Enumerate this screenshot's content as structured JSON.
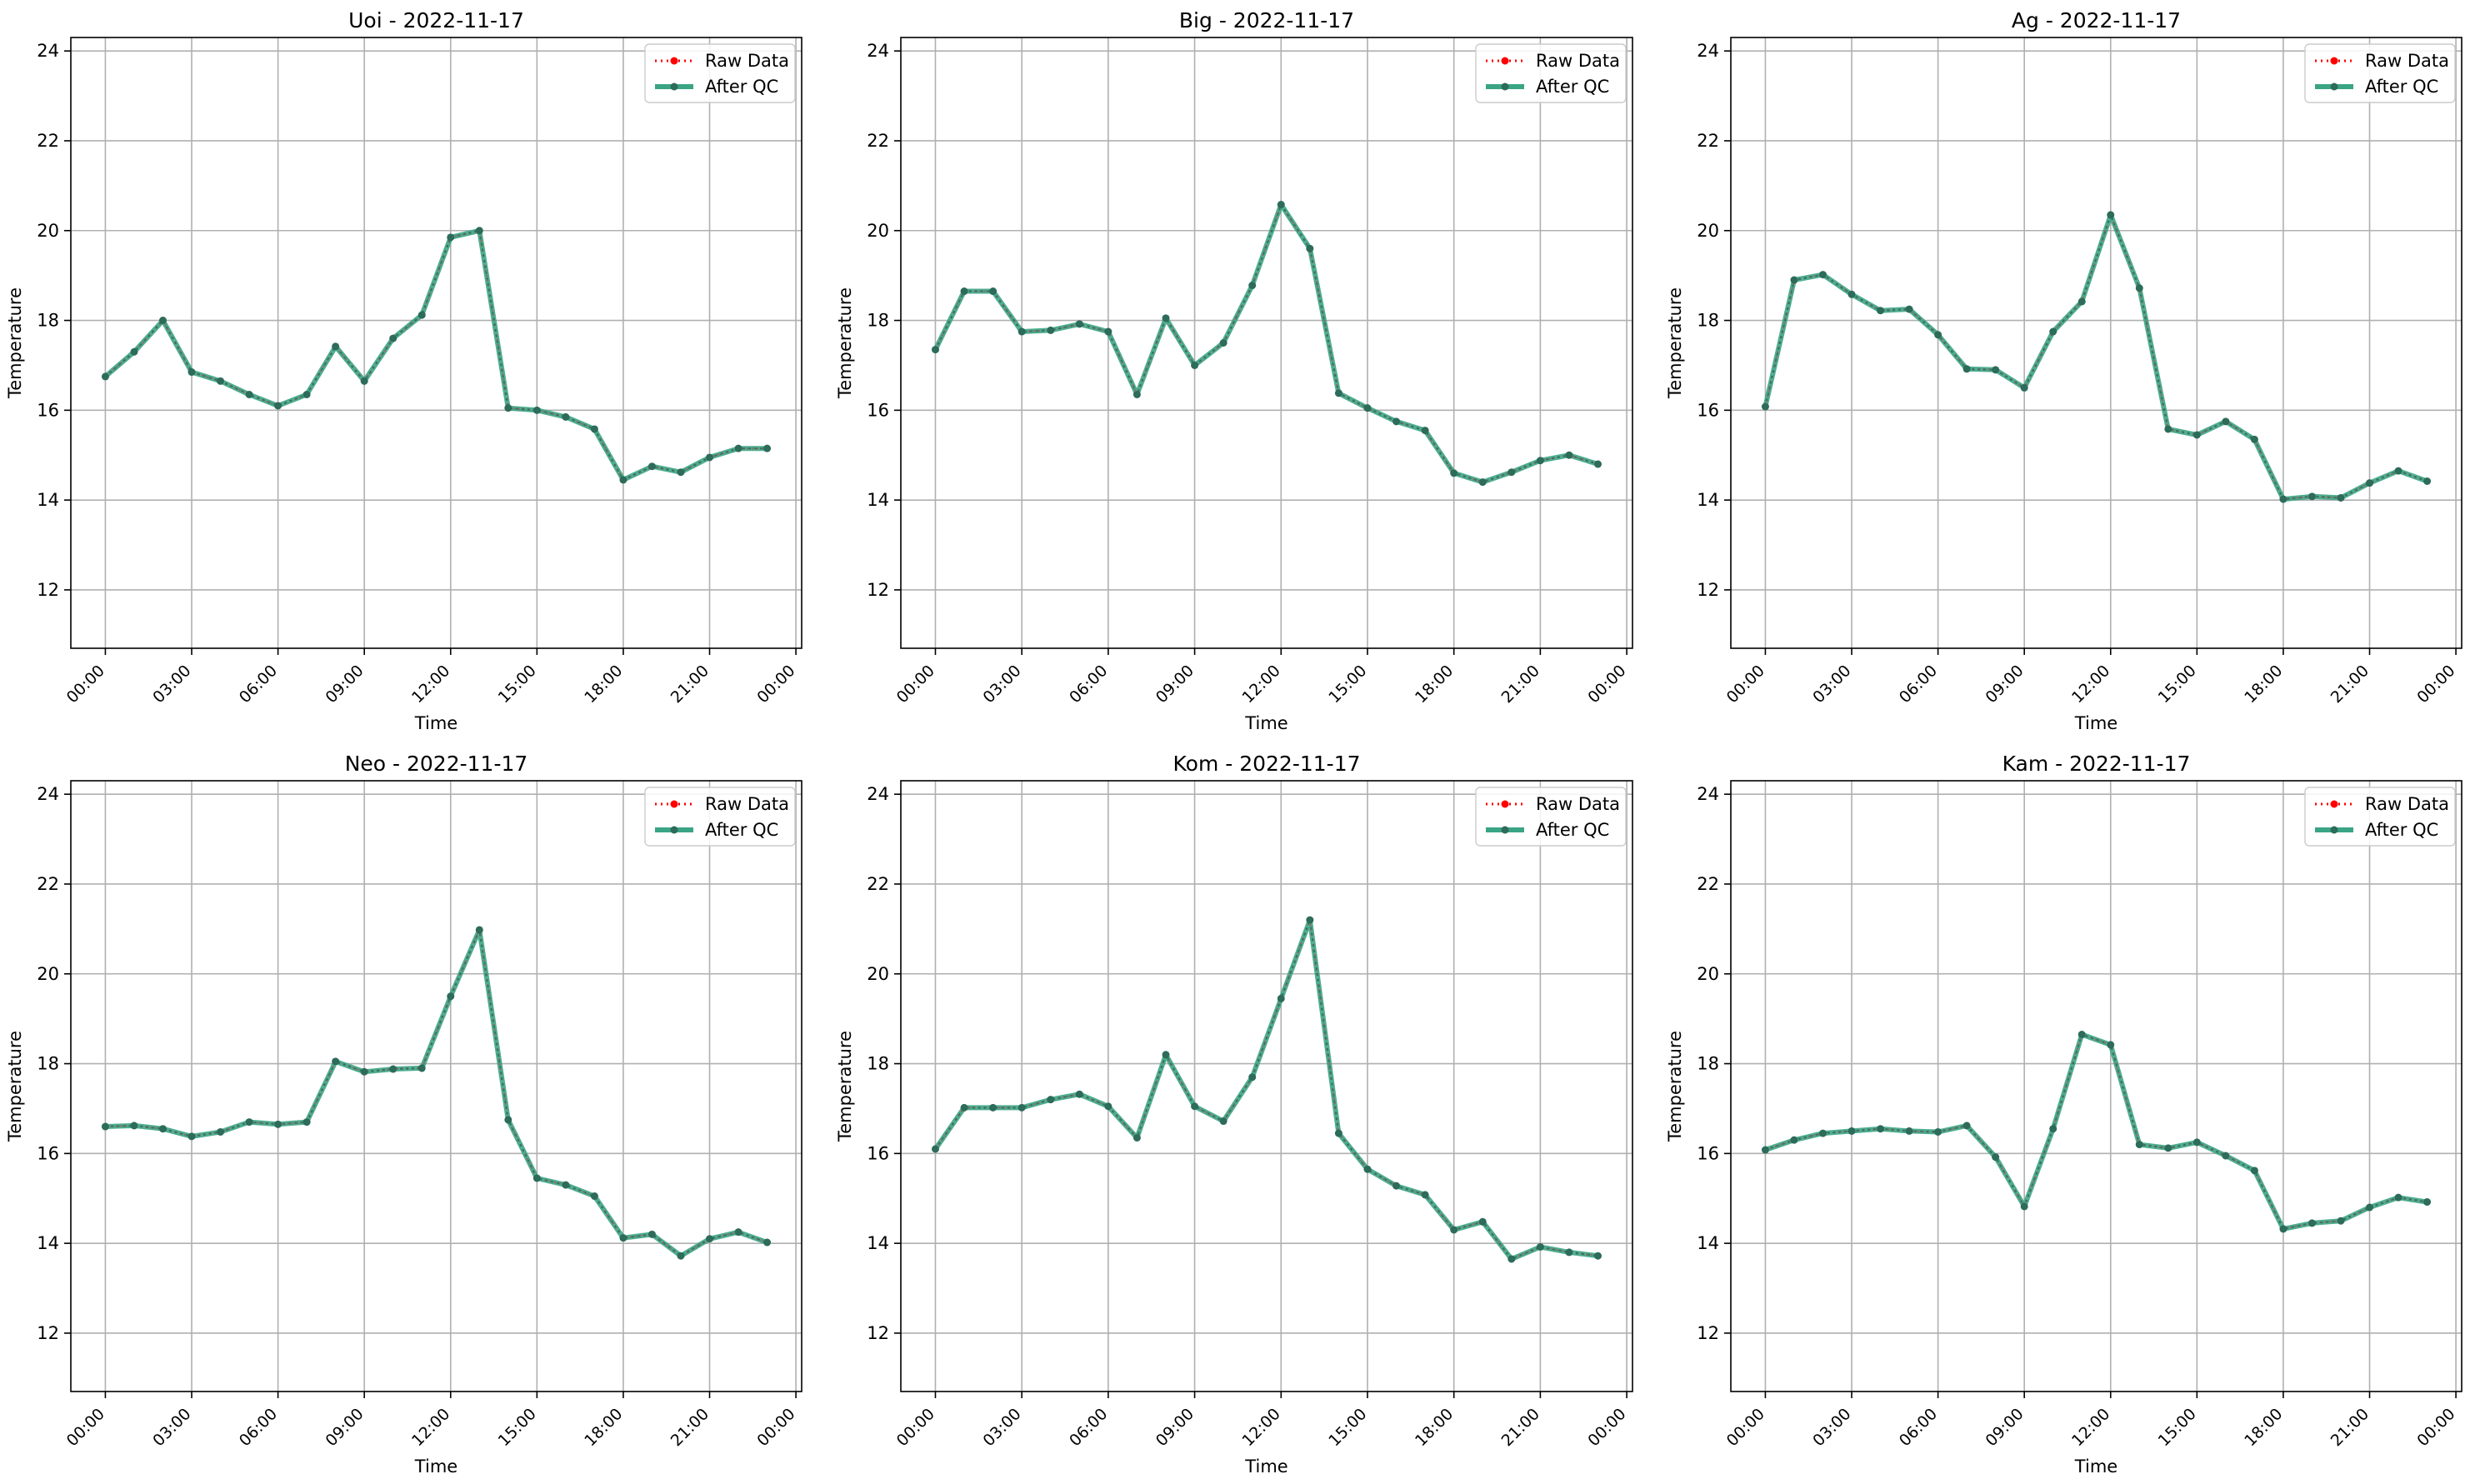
{
  "figure": {
    "colors": {
      "raw": "#ff0000",
      "qc": "#2e9e7e",
      "qc_line": "#3aa585",
      "qc_marker": "#2d6b5a",
      "grid": "#b0b0b0",
      "axis": "#000000"
    }
  },
  "chart_data": [
    {
      "type": "line",
      "title": "Uoi - 2022-11-17",
      "xlabel": "Time",
      "ylabel": "Temperature",
      "x_tick_labels": [
        "00:00",
        "03:00",
        "06:00",
        "09:00",
        "12:00",
        "15:00",
        "18:00",
        "21:00",
        "00:00"
      ],
      "y_ticks": [
        12,
        14,
        16,
        18,
        20,
        22,
        24
      ],
      "xlim_hours": [
        -1.2,
        24.2
      ],
      "ylim": [
        10.7,
        24.3
      ],
      "grid": true,
      "legend_position": "top-right",
      "x_hours": [
        0,
        1,
        2,
        3,
        4,
        5,
        6,
        7,
        8,
        9,
        10,
        11,
        12,
        13,
        14,
        15,
        16,
        17,
        18,
        19,
        20,
        21,
        22,
        23
      ],
      "series": [
        {
          "name": "Raw Data",
          "style": "dotted-red",
          "values": [
            16.75,
            17.3,
            18.0,
            16.85,
            16.65,
            16.35,
            16.1,
            16.35,
            17.42,
            16.65,
            17.6,
            18.12,
            19.85,
            20.0,
            16.05,
            16.0,
            15.85,
            15.58,
            14.45,
            14.75,
            14.62,
            14.95,
            15.15,
            15.15
          ]
        },
        {
          "name": "After QC",
          "style": "solid-green",
          "values": [
            16.75,
            17.3,
            18.0,
            16.85,
            16.65,
            16.35,
            16.1,
            16.35,
            17.42,
            16.65,
            17.6,
            18.12,
            19.85,
            20.0,
            16.05,
            16.0,
            15.85,
            15.58,
            14.45,
            14.75,
            14.62,
            14.95,
            15.15,
            15.15
          ]
        }
      ]
    },
    {
      "type": "line",
      "title": "Big - 2022-11-17",
      "xlabel": "Time",
      "ylabel": "Temperature",
      "x_tick_labels": [
        "00:00",
        "03:00",
        "06:00",
        "09:00",
        "12:00",
        "15:00",
        "18:00",
        "21:00",
        "00:00"
      ],
      "y_ticks": [
        12,
        14,
        16,
        18,
        20,
        22,
        24
      ],
      "xlim_hours": [
        -1.2,
        24.2
      ],
      "ylim": [
        10.7,
        24.3
      ],
      "grid": true,
      "legend_position": "top-right",
      "x_hours": [
        0,
        1,
        2,
        3,
        4,
        5,
        6,
        7,
        8,
        9,
        10,
        11,
        12,
        13,
        14,
        15,
        16,
        17,
        18,
        19,
        20,
        21,
        22,
        23
      ],
      "series": [
        {
          "name": "Raw Data",
          "style": "dotted-red",
          "values": [
            17.35,
            18.65,
            18.65,
            17.75,
            17.78,
            17.92,
            17.75,
            16.35,
            18.05,
            17.0,
            17.5,
            18.78,
            20.58,
            19.6,
            16.38,
            16.05,
            15.75,
            15.55,
            14.6,
            14.4,
            14.62,
            14.88,
            15.0,
            14.8
          ]
        },
        {
          "name": "After QC",
          "style": "solid-green",
          "values": [
            17.35,
            18.65,
            18.65,
            17.75,
            17.78,
            17.92,
            17.75,
            16.35,
            18.05,
            17.0,
            17.5,
            18.78,
            20.58,
            19.6,
            16.38,
            16.05,
            15.75,
            15.55,
            14.6,
            14.4,
            14.62,
            14.88,
            15.0,
            14.8
          ]
        }
      ]
    },
    {
      "type": "line",
      "title": "Ag - 2022-11-17",
      "xlabel": "Time",
      "ylabel": "Temperature",
      "x_tick_labels": [
        "00:00",
        "03:00",
        "06:00",
        "09:00",
        "12:00",
        "15:00",
        "18:00",
        "21:00",
        "00:00"
      ],
      "y_ticks": [
        12,
        14,
        16,
        18,
        20,
        22,
        24
      ],
      "xlim_hours": [
        -1.2,
        24.2
      ],
      "ylim": [
        10.7,
        24.3
      ],
      "grid": true,
      "legend_position": "top-right",
      "x_hours": [
        0,
        1,
        2,
        3,
        4,
        5,
        6,
        7,
        8,
        9,
        10,
        11,
        12,
        13,
        14,
        15,
        16,
        17,
        18,
        19,
        20,
        21,
        22,
        23
      ],
      "series": [
        {
          "name": "Raw Data",
          "style": "dotted-red",
          "values": [
            16.08,
            18.9,
            19.02,
            18.58,
            18.22,
            18.25,
            17.68,
            16.92,
            16.9,
            16.5,
            17.75,
            18.42,
            20.35,
            18.72,
            15.58,
            15.45,
            15.75,
            15.35,
            14.02,
            14.08,
            14.05,
            14.38,
            14.65,
            14.42
          ]
        },
        {
          "name": "After QC",
          "style": "solid-green",
          "values": [
            16.08,
            18.9,
            19.02,
            18.58,
            18.22,
            18.25,
            17.68,
            16.92,
            16.9,
            16.5,
            17.75,
            18.42,
            20.35,
            18.72,
            15.58,
            15.45,
            15.75,
            15.35,
            14.02,
            14.08,
            14.05,
            14.38,
            14.65,
            14.42
          ]
        }
      ]
    },
    {
      "type": "line",
      "title": "Neo - 2022-11-17",
      "xlabel": "Time",
      "ylabel": "Temperature",
      "x_tick_labels": [
        "00:00",
        "03:00",
        "06:00",
        "09:00",
        "12:00",
        "15:00",
        "18:00",
        "21:00",
        "00:00"
      ],
      "y_ticks": [
        12,
        14,
        16,
        18,
        20,
        22,
        24
      ],
      "xlim_hours": [
        -1.2,
        24.2
      ],
      "ylim": [
        10.7,
        24.3
      ],
      "grid": true,
      "legend_position": "top-right",
      "x_hours": [
        0,
        1,
        2,
        3,
        4,
        5,
        6,
        7,
        8,
        9,
        10,
        11,
        12,
        13,
        14,
        15,
        16,
        17,
        18,
        19,
        20,
        21,
        22,
        23
      ],
      "series": [
        {
          "name": "Raw Data",
          "style": "dotted-red",
          "values": [
            16.6,
            16.62,
            16.55,
            16.38,
            16.48,
            16.7,
            16.65,
            16.7,
            18.05,
            17.82,
            17.88,
            17.9,
            19.5,
            20.98,
            16.75,
            15.45,
            15.3,
            15.05,
            14.12,
            14.2,
            13.72,
            14.1,
            14.25,
            14.02
          ]
        },
        {
          "name": "After QC",
          "style": "solid-green",
          "values": [
            16.6,
            16.62,
            16.55,
            16.38,
            16.48,
            16.7,
            16.65,
            16.7,
            18.05,
            17.82,
            17.88,
            17.9,
            19.5,
            20.98,
            16.75,
            15.45,
            15.3,
            15.05,
            14.12,
            14.2,
            13.72,
            14.1,
            14.25,
            14.02
          ]
        }
      ]
    },
    {
      "type": "line",
      "title": "Kom - 2022-11-17",
      "xlabel": "Time",
      "ylabel": "Temperature",
      "x_tick_labels": [
        "00:00",
        "03:00",
        "06:00",
        "09:00",
        "12:00",
        "15:00",
        "18:00",
        "21:00",
        "00:00"
      ],
      "y_ticks": [
        12,
        14,
        16,
        18,
        20,
        22,
        24
      ],
      "xlim_hours": [
        -1.2,
        24.2
      ],
      "ylim": [
        10.7,
        24.3
      ],
      "grid": true,
      "legend_position": "top-right",
      "x_hours": [
        0,
        1,
        2,
        3,
        4,
        5,
        6,
        7,
        8,
        9,
        10,
        11,
        12,
        13,
        14,
        15,
        16,
        17,
        18,
        19,
        20,
        21,
        22,
        23
      ],
      "series": [
        {
          "name": "Raw Data",
          "style": "dotted-red",
          "values": [
            16.1,
            17.02,
            17.02,
            17.02,
            17.2,
            17.32,
            17.05,
            16.35,
            18.2,
            17.05,
            16.72,
            17.7,
            19.45,
            21.2,
            16.45,
            15.65,
            15.28,
            15.08,
            14.3,
            14.48,
            13.65,
            13.92,
            13.8,
            13.72
          ]
        },
        {
          "name": "After QC",
          "style": "solid-green",
          "values": [
            16.1,
            17.02,
            17.02,
            17.02,
            17.2,
            17.32,
            17.05,
            16.35,
            18.2,
            17.05,
            16.72,
            17.7,
            19.45,
            21.2,
            16.45,
            15.65,
            15.28,
            15.08,
            14.3,
            14.48,
            13.65,
            13.92,
            13.8,
            13.72
          ]
        }
      ]
    },
    {
      "type": "line",
      "title": "Kam - 2022-11-17",
      "xlabel": "Time",
      "ylabel": "Temperature",
      "x_tick_labels": [
        "00:00",
        "03:00",
        "06:00",
        "09:00",
        "12:00",
        "15:00",
        "18:00",
        "21:00",
        "00:00"
      ],
      "y_ticks": [
        12,
        14,
        16,
        18,
        20,
        22,
        24
      ],
      "xlim_hours": [
        -1.2,
        24.2
      ],
      "ylim": [
        10.7,
        24.3
      ],
      "grid": true,
      "legend_position": "top-right",
      "x_hours": [
        0,
        1,
        2,
        3,
        4,
        5,
        6,
        7,
        8,
        9,
        10,
        11,
        12,
        13,
        14,
        15,
        16,
        17,
        18,
        19,
        20,
        21,
        22,
        23
      ],
      "series": [
        {
          "name": "Raw Data",
          "style": "dotted-red",
          "values": [
            16.08,
            16.3,
            16.45,
            16.5,
            16.55,
            16.5,
            16.48,
            16.62,
            15.92,
            14.82,
            16.55,
            18.65,
            18.42,
            16.2,
            16.12,
            16.25,
            15.95,
            15.62,
            14.32,
            14.45,
            14.5,
            14.8,
            15.02,
            14.92
          ]
        },
        {
          "name": "After QC",
          "style": "solid-green",
          "values": [
            16.08,
            16.3,
            16.45,
            16.5,
            16.55,
            16.5,
            16.48,
            16.62,
            15.92,
            14.82,
            16.55,
            18.65,
            18.42,
            16.2,
            16.12,
            16.25,
            15.95,
            15.62,
            14.32,
            14.45,
            14.5,
            14.8,
            15.02,
            14.92
          ]
        }
      ]
    }
  ]
}
